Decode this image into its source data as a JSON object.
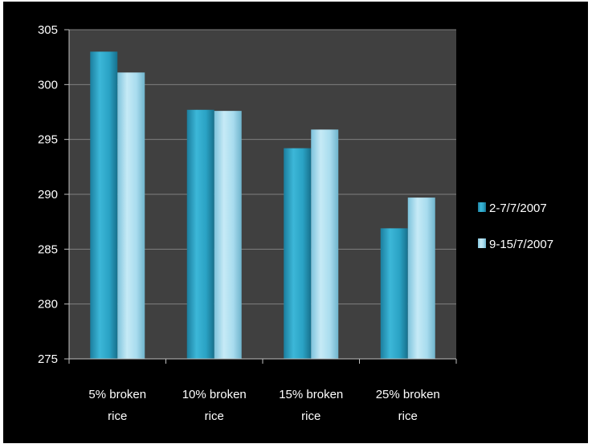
{
  "chart_data": {
    "type": "bar",
    "categories": [
      [
        "5% broken",
        "rice"
      ],
      [
        "10% broken",
        "rice"
      ],
      [
        "15% broken",
        "rice"
      ],
      [
        "25% broken",
        "rice"
      ]
    ],
    "series": [
      {
        "name": "2-7/7/2007",
        "values": [
          303.0,
          297.7,
          294.2,
          286.9
        ]
      },
      {
        "name": "9-15/7/2007",
        "values": [
          301.1,
          297.6,
          295.9,
          289.7
        ]
      }
    ],
    "ylim": [
      275,
      305
    ],
    "yticks": [
      "275",
      "280",
      "285",
      "290",
      "295",
      "300",
      "305"
    ],
    "grid": true,
    "legend_position": "right",
    "title": "",
    "xlabel": "",
    "ylabel": "",
    "colors": {
      "background": "#000000",
      "plot_background": "#404040",
      "gridline": "#7f7f7f",
      "series1": "#2a9fc1",
      "series2": "#9fd6ea"
    }
  }
}
